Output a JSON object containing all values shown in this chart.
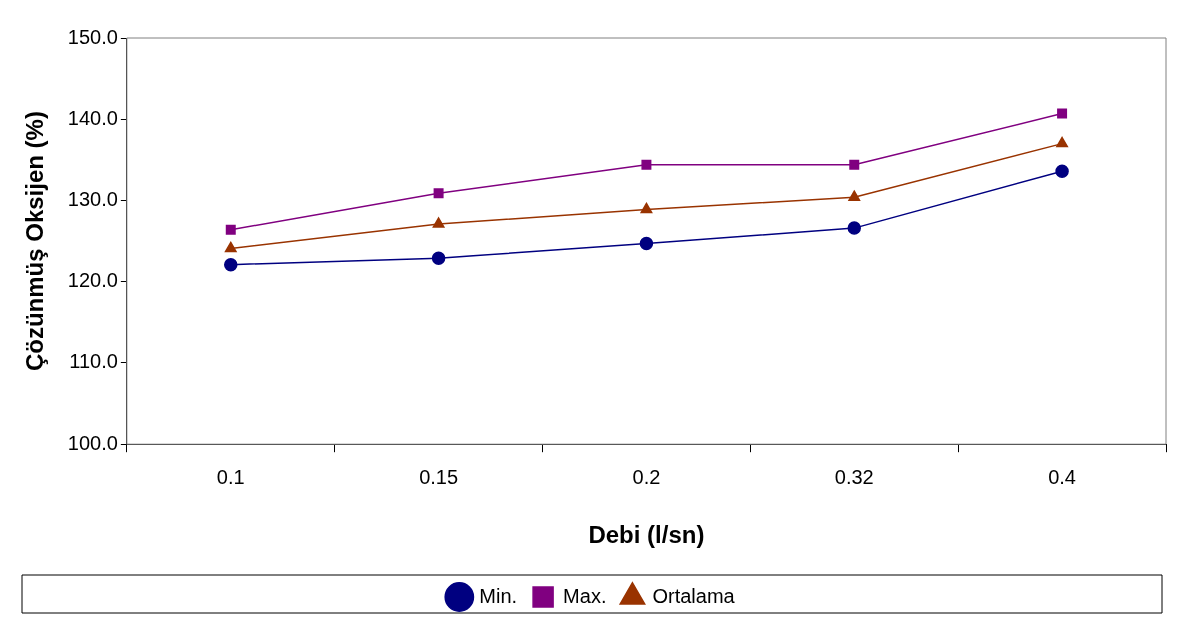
{
  "chart_data": {
    "type": "line",
    "xlabel": "Debi (l/sn)",
    "ylabel": "Çözünmüş Oksijen (%)",
    "categories": [
      "0.1",
      "0.15",
      "0.2",
      "0.32",
      "0.4"
    ],
    "ylim": [
      100,
      150
    ],
    "yticks": [
      {
        "value": 100,
        "label": "100.0"
      },
      {
        "value": 110,
        "label": "110.0"
      },
      {
        "value": 120,
        "label": "120.0"
      },
      {
        "value": 130,
        "label": "130.0"
      },
      {
        "value": 140,
        "label": "140.0"
      },
      {
        "value": 150,
        "label": "150.0"
      }
    ],
    "grid": false,
    "legend": "bottom",
    "line_style": "solid",
    "series": [
      {
        "name": "Min.",
        "color": "#000080",
        "marker": "circle",
        "values": [
          122.1,
          122.9,
          124.7,
          126.6,
          133.6
        ]
      },
      {
        "name": "Max.",
        "color": "#800080",
        "marker": "square",
        "values": [
          126.4,
          130.9,
          134.4,
          134.4,
          140.7
        ]
      },
      {
        "name": "Ortalama",
        "color": "#993300",
        "marker": "triangle",
        "values": [
          124.1,
          127.1,
          128.9,
          130.4,
          137.0
        ]
      }
    ]
  }
}
